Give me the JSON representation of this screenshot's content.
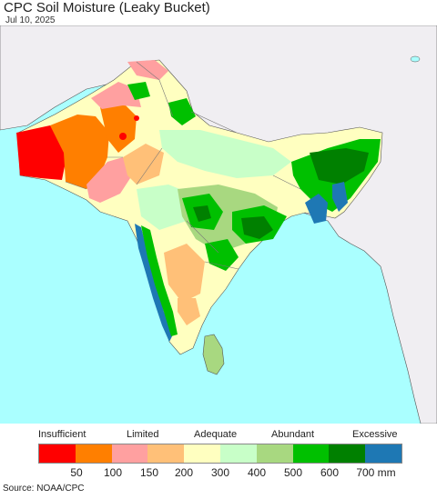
{
  "header": {
    "title": "CPC Soil Moisture (Leaky Bucket)",
    "date": "Jul 10, 2025"
  },
  "legend": {
    "categories": [
      "Insufficient",
      "Limited",
      "Adequate",
      "Abundant",
      "Excessive"
    ],
    "colors": [
      "#ff0000",
      "#ff7f00",
      "#ffa0a0",
      "#ffc078",
      "#ffffc0",
      "#c8ffc8",
      "#a8d880",
      "#00c000",
      "#008000",
      "#1e78b4"
    ],
    "ticks": [
      "50",
      "100",
      "150",
      "200",
      "300",
      "400",
      "500",
      "600",
      "700 mm"
    ]
  },
  "map": {
    "ocean_color": "#aaffff",
    "land_outside_color": "#f0eef2"
  },
  "footer": {
    "source": "Source: NOAA/CPC"
  }
}
